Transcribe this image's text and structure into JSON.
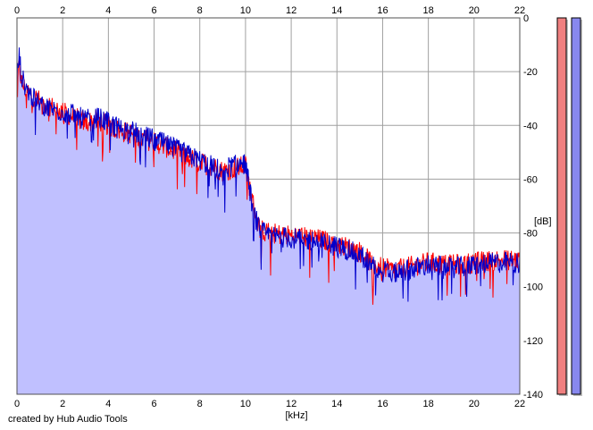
{
  "chart_data": {
    "type": "area",
    "xlabel": "[kHz]",
    "ylabel": "[dB]",
    "xlim": [
      0,
      22
    ],
    "ylim": [
      -140,
      0
    ],
    "x_ticks": [
      "0",
      "2",
      "4",
      "6",
      "8",
      "10",
      "12",
      "14",
      "16",
      "18",
      "20",
      "22"
    ],
    "y_ticks": [
      "0",
      "-20",
      "-40",
      "-60",
      "-80",
      "-100",
      "-120",
      "-140"
    ],
    "grid": true,
    "scale": "linear",
    "series": [
      {
        "channel": "left",
        "color": "#ff0000",
        "x": [
          0,
          0.1,
          0.2,
          0.4,
          0.7,
          1.0,
          1.5,
          2.0,
          2.5,
          3.0,
          3.5,
          4.0,
          4.5,
          5.0,
          5.5,
          6.0,
          6.5,
          7.0,
          7.5,
          8.0,
          8.5,
          9.0,
          9.5,
          10.0,
          10.3,
          10.6,
          11.0,
          12.0,
          13.0,
          14.0,
          15.0,
          15.5,
          16.0,
          16.5,
          17.0,
          17.5,
          18.0,
          19.0,
          20.0,
          21.0,
          22.0
        ],
        "y": [
          -22,
          -18,
          -24,
          -27,
          -29,
          -31,
          -33,
          -35,
          -37,
          -39,
          -38,
          -40,
          -42,
          -43,
          -45,
          -46,
          -48,
          -50,
          -52,
          -54,
          -55,
          -57,
          -56,
          -55,
          -68,
          -78,
          -80,
          -81,
          -82,
          -84,
          -87,
          -91,
          -93,
          -94,
          -93,
          -92,
          -91,
          -92,
          -91,
          -90,
          -90
        ]
      },
      {
        "channel": "right",
        "color": "#0000cc",
        "x": [
          0,
          0.1,
          0.2,
          0.4,
          0.7,
          1.0,
          1.5,
          2.0,
          2.5,
          3.0,
          3.5,
          4.0,
          4.5,
          5.0,
          5.5,
          6.0,
          6.5,
          7.0,
          7.5,
          8.0,
          8.5,
          9.0,
          9.5,
          10.0,
          10.3,
          10.6,
          11.0,
          12.0,
          13.0,
          14.0,
          15.0,
          15.5,
          16.0,
          16.5,
          17.0,
          17.5,
          18.0,
          19.0,
          20.0,
          21.0,
          22.0
        ],
        "y": [
          -22,
          -14,
          -22,
          -26,
          -30,
          -32,
          -34,
          -35,
          -36,
          -38,
          -37,
          -39,
          -41,
          -42,
          -44,
          -45,
          -47,
          -49,
          -51,
          -53,
          -55,
          -56,
          -55,
          -54,
          -70,
          -79,
          -81,
          -82,
          -83,
          -85,
          -88,
          -92,
          -94,
          -95,
          -94,
          -93,
          -92,
          -93,
          -92,
          -91,
          -91
        ]
      }
    ],
    "fill_color": "#c0c0ff",
    "meters": [
      {
        "channel": "left",
        "color": "#f08080"
      },
      {
        "channel": "right",
        "color": "#8888ee"
      }
    ]
  },
  "footer": {
    "credit": "created by Hub Audio Tools"
  }
}
